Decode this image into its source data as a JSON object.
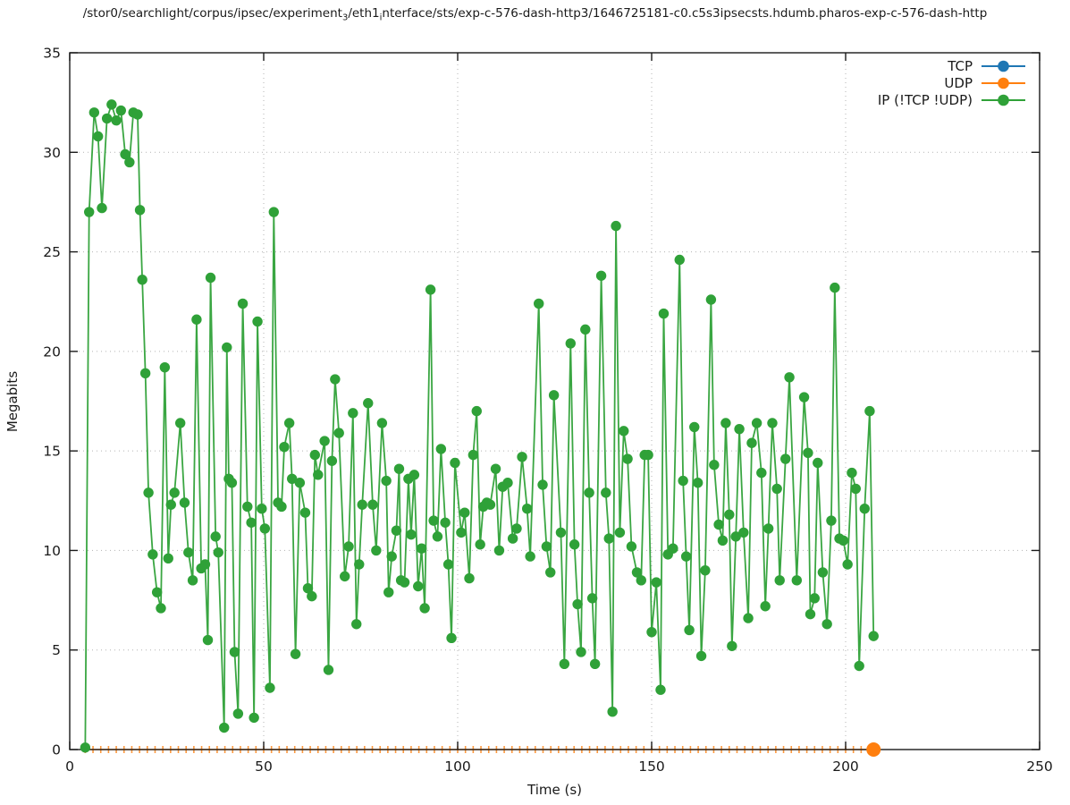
{
  "title": {
    "part1": "/stor0/searchlight/corpus/ipsec/experiment",
    "sub1": "3",
    "part2": "/eth1",
    "sub2": "i",
    "part3": "nterface/sts/exp-c-576-dash-http3/1646725181-c0.c5s3ipsecsts.hdumb.pharos-exp-c-576-dash-http"
  },
  "axes": {
    "ylabel": "Megabits",
    "xlabel": "Time (s)",
    "xlim": [
      0,
      250
    ],
    "ylim": [
      0,
      35
    ],
    "x_ticks": [
      0,
      50,
      100,
      150,
      200,
      250
    ],
    "y_ticks": [
      0,
      5,
      10,
      15,
      20,
      25,
      30,
      35
    ],
    "grid": true,
    "grid_color": "#b3b3b3",
    "border_color": "#1a1a1a"
  },
  "legend": {
    "position": "top-right-inside",
    "entries": [
      {
        "label": "TCP",
        "color": "#1f77b4"
      },
      {
        "label": "UDP",
        "color": "#ff7f0e"
      },
      {
        "label": "IP (!TCP  !UDP)",
        "color": "#2fa138"
      }
    ]
  },
  "chart_data": {
    "type": "line",
    "xlabel": "Time (s)",
    "ylabel": "Megabits",
    "xlim": [
      0,
      250
    ],
    "ylim": [
      0,
      35
    ],
    "series": [
      {
        "name": "TCP",
        "color": "#1f77b4",
        "visible_in_plot": false,
        "points": []
      },
      {
        "name": "UDP",
        "color": "#ff7f0e",
        "style": "flat-zero-line-with-small-ticks",
        "tick_start": 4,
        "tick_end": 205,
        "tick_step": 2,
        "value": 0,
        "end_point": [
          207.2,
          0
        ]
      },
      {
        "name": "IP (!TCP  !UDP)",
        "color": "#2fa138",
        "points": [
          [
            4,
            0.1
          ],
          [
            5,
            27
          ],
          [
            6.3,
            32
          ],
          [
            7.3,
            30.8
          ],
          [
            8.3,
            27.2
          ],
          [
            9.6,
            31.7
          ],
          [
            10.8,
            32.4
          ],
          [
            12,
            31.6
          ],
          [
            13.2,
            32.1
          ],
          [
            14.3,
            29.9
          ],
          [
            15.4,
            29.5
          ],
          [
            16.4,
            32
          ],
          [
            17.5,
            31.9
          ],
          [
            18.1,
            27.1
          ],
          [
            18.7,
            23.6
          ],
          [
            19.5,
            18.9
          ],
          [
            20.3,
            12.9
          ],
          [
            21.4,
            9.8
          ],
          [
            22.5,
            7.9
          ],
          [
            23.5,
            7.1
          ],
          [
            24.5,
            19.2
          ],
          [
            25.4,
            9.6
          ],
          [
            26.1,
            12.3
          ],
          [
            27,
            12.9
          ],
          [
            28.5,
            16.4
          ],
          [
            29.6,
            12.4
          ],
          [
            30.6,
            9.9
          ],
          [
            31.7,
            8.5
          ],
          [
            32.7,
            21.6
          ],
          [
            33.9,
            9.1
          ],
          [
            34.9,
            9.3
          ],
          [
            35.6,
            5.5
          ],
          [
            36.3,
            23.7
          ],
          [
            37.6,
            10.7
          ],
          [
            38.3,
            9.9
          ],
          [
            39.8,
            1.1
          ],
          [
            40.5,
            20.2
          ],
          [
            41,
            13.6
          ],
          [
            41.8,
            13.4
          ],
          [
            42.5,
            4.9
          ],
          [
            43.4,
            1.8
          ],
          [
            44.6,
            22.4
          ],
          [
            45.8,
            12.2
          ],
          [
            46.8,
            11.4
          ],
          [
            47.5,
            1.6
          ],
          [
            48.4,
            21.5
          ],
          [
            49.5,
            12.1
          ],
          [
            50.3,
            11.1
          ],
          [
            51.6,
            3.1
          ],
          [
            52.6,
            27
          ],
          [
            53.7,
            12.4
          ],
          [
            54.6,
            12.2
          ],
          [
            55.3,
            15.2
          ],
          [
            56.6,
            16.4
          ],
          [
            57.3,
            13.6
          ],
          [
            58.2,
            4.8
          ],
          [
            59.3,
            13.4
          ],
          [
            60.7,
            11.9
          ],
          [
            61.4,
            8.1
          ],
          [
            62.4,
            7.7
          ],
          [
            63.2,
            14.8
          ],
          [
            64,
            13.8
          ],
          [
            65.7,
            15.5
          ],
          [
            66.7,
            4
          ],
          [
            67.6,
            14.5
          ],
          [
            68.4,
            18.6
          ],
          [
            69.4,
            15.9
          ],
          [
            70.9,
            8.7
          ],
          [
            71.9,
            10.2
          ],
          [
            73,
            16.9
          ],
          [
            73.9,
            6.3
          ],
          [
            74.6,
            9.3
          ],
          [
            75.4,
            12.3
          ],
          [
            76.9,
            17.4
          ],
          [
            78.1,
            12.3
          ],
          [
            79,
            10
          ],
          [
            80.5,
            16.4
          ],
          [
            81.6,
            13.5
          ],
          [
            82.2,
            7.9
          ],
          [
            83,
            9.7
          ],
          [
            84.2,
            11
          ],
          [
            84.9,
            14.1
          ],
          [
            85.4,
            8.5
          ],
          [
            86.3,
            8.4
          ],
          [
            87.3,
            13.6
          ],
          [
            88,
            10.8
          ],
          [
            88.8,
            13.8
          ],
          [
            89.8,
            8.2
          ],
          [
            90.7,
            10.1
          ],
          [
            91.5,
            7.1
          ],
          [
            93,
            23.1
          ],
          [
            93.8,
            11.5
          ],
          [
            94.8,
            10.7
          ],
          [
            95.7,
            15.1
          ],
          [
            96.8,
            11.4
          ],
          [
            97.6,
            9.3
          ],
          [
            98.4,
            5.6
          ],
          [
            99.3,
            14.4
          ],
          [
            100.9,
            10.9
          ],
          [
            101.8,
            11.9
          ],
          [
            103,
            8.6
          ],
          [
            104,
            14.8
          ],
          [
            104.9,
            17
          ],
          [
            105.8,
            10.3
          ],
          [
            106.6,
            12.2
          ],
          [
            107.5,
            12.4
          ],
          [
            108.4,
            12.3
          ],
          [
            109.8,
            14.1
          ],
          [
            110.7,
            10
          ],
          [
            111.6,
            13.2
          ],
          [
            112.9,
            13.4
          ],
          [
            114.2,
            10.6
          ],
          [
            115.2,
            11.1
          ],
          [
            116.6,
            14.7
          ],
          [
            117.9,
            12.1
          ],
          [
            118.7,
            9.7
          ],
          [
            120.9,
            22.4
          ],
          [
            121.9,
            13.3
          ],
          [
            122.9,
            10.2
          ],
          [
            123.9,
            8.9
          ],
          [
            124.8,
            17.8
          ],
          [
            126.6,
            10.9
          ],
          [
            127.5,
            4.3
          ],
          [
            129.1,
            20.4
          ],
          [
            130.1,
            10.3
          ],
          [
            130.9,
            7.3
          ],
          [
            131.8,
            4.9
          ],
          [
            132.9,
            21.1
          ],
          [
            133.9,
            12.9
          ],
          [
            134.7,
            7.6
          ],
          [
            135.4,
            4.3
          ],
          [
            137,
            23.8
          ],
          [
            138.2,
            12.9
          ],
          [
            139,
            10.6
          ],
          [
            139.9,
            1.9
          ],
          [
            140.8,
            26.3
          ],
          [
            141.8,
            10.9
          ],
          [
            142.8,
            16
          ],
          [
            143.8,
            14.6
          ],
          [
            144.8,
            10.2
          ],
          [
            146.2,
            8.9
          ],
          [
            147.3,
            8.5
          ],
          [
            148.2,
            14.8
          ],
          [
            149.1,
            14.8
          ],
          [
            150,
            5.9
          ],
          [
            151.2,
            8.4
          ],
          [
            152.3,
            3
          ],
          [
            153.1,
            21.9
          ],
          [
            154.2,
            9.8
          ],
          [
            155.5,
            10.1
          ],
          [
            157.2,
            24.6
          ],
          [
            158.1,
            13.5
          ],
          [
            158.9,
            9.7
          ],
          [
            159.7,
            6
          ],
          [
            161,
            16.2
          ],
          [
            161.9,
            13.4
          ],
          [
            162.8,
            4.7
          ],
          [
            163.8,
            9
          ],
          [
            165.3,
            22.6
          ],
          [
            166.1,
            14.3
          ],
          [
            167.3,
            11.3
          ],
          [
            168.3,
            10.5
          ],
          [
            169.1,
            16.4
          ],
          [
            170,
            11.8
          ],
          [
            170.7,
            5.2
          ],
          [
            171.7,
            10.7
          ],
          [
            172.6,
            16.1
          ],
          [
            173.7,
            10.9
          ],
          [
            174.9,
            6.6
          ],
          [
            175.8,
            15.4
          ],
          [
            177.1,
            16.4
          ],
          [
            178.3,
            13.9
          ],
          [
            179.3,
            7.2
          ],
          [
            180.1,
            11.1
          ],
          [
            181.1,
            16.4
          ],
          [
            182.3,
            13.1
          ],
          [
            183,
            8.5
          ],
          [
            184.5,
            14.6
          ],
          [
            185.5,
            18.7
          ],
          [
            187.4,
            8.5
          ],
          [
            189.3,
            17.7
          ],
          [
            190.3,
            14.9
          ],
          [
            190.9,
            6.8
          ],
          [
            192,
            7.6
          ],
          [
            192.8,
            14.4
          ],
          [
            194.1,
            8.9
          ],
          [
            195.2,
            6.3
          ],
          [
            196.3,
            11.5
          ],
          [
            197.2,
            23.2
          ],
          [
            198.4,
            10.6
          ],
          [
            199.4,
            10.5
          ],
          [
            200.5,
            9.3
          ],
          [
            201.6,
            13.9
          ],
          [
            202.6,
            13.1
          ],
          [
            203.5,
            4.2
          ],
          [
            204.9,
            12.1
          ],
          [
            206.2,
            17
          ],
          [
            207.2,
            5.7
          ]
        ]
      }
    ]
  }
}
